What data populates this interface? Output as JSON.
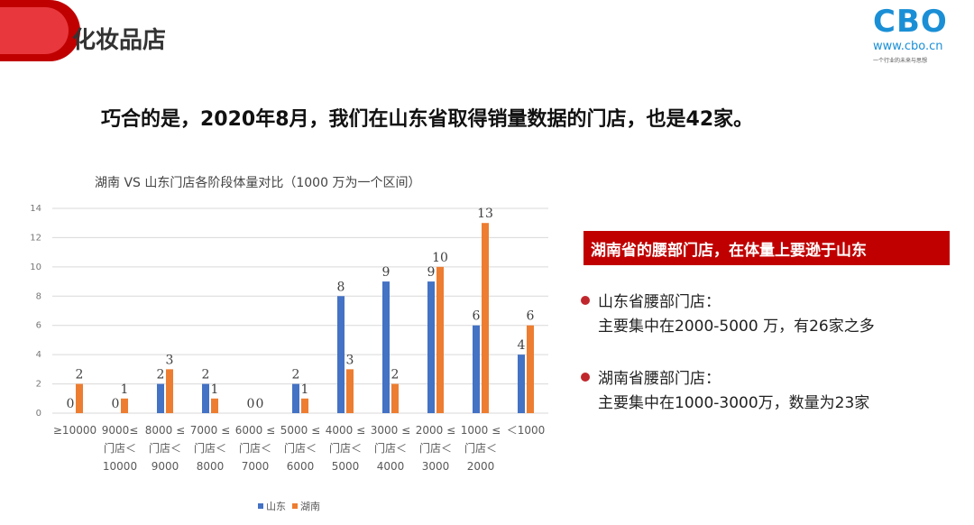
{
  "header": {
    "title": "化妆品店",
    "logo": "CBO",
    "logo_url": "www.cbo.cn",
    "logo_slogan": "一个行业的未来与思想"
  },
  "headline": "巧合的是，2020年8月，我们在山东省取得销量数据的门店，也是42家。",
  "callout": {
    "title": "湖南省的腰部门店，在体量上要逊于山东",
    "bullets": [
      {
        "heading": "山东省腰部门店：",
        "text": "主要集中在2000-5000 万，有26家之多"
      },
      {
        "heading": "湖南省腰部门店：",
        "text": "主要集中在1000-3000万，数量为23家"
      }
    ]
  },
  "chart_data": {
    "type": "bar",
    "title": "湖南 VS 山东门店各阶段体量对比（1000 万为一个区间）",
    "categories": [
      "≥10000",
      "9000≤\n门店＜\n10000",
      "8000 ≤\n门店＜\n9000",
      "7000 ≤\n门店＜\n8000",
      "6000 ≤\n门店＜\n7000",
      "5000 ≤\n门店＜\n6000",
      "4000 ≤\n门店＜\n5000",
      "3000 ≤\n门店＜\n4000",
      "2000 ≤\n门店＜\n3000",
      "1000 ≤\n门店＜\n2000",
      "＜1000"
    ],
    "series": [
      {
        "name": "山东",
        "color": "#4472c4",
        "values": [
          0,
          0,
          2,
          2,
          0,
          2,
          8,
          9,
          9,
          6,
          4
        ]
      },
      {
        "name": "湖南",
        "color": "#ed7d31",
        "values": [
          2,
          1,
          3,
          1,
          0,
          1,
          3,
          2,
          10,
          13,
          6
        ]
      }
    ],
    "ylim": [
      0,
      14
    ],
    "yticks": [
      0,
      2,
      4,
      6,
      8,
      10,
      12,
      14
    ],
    "grid": true,
    "legend": "bottom"
  }
}
